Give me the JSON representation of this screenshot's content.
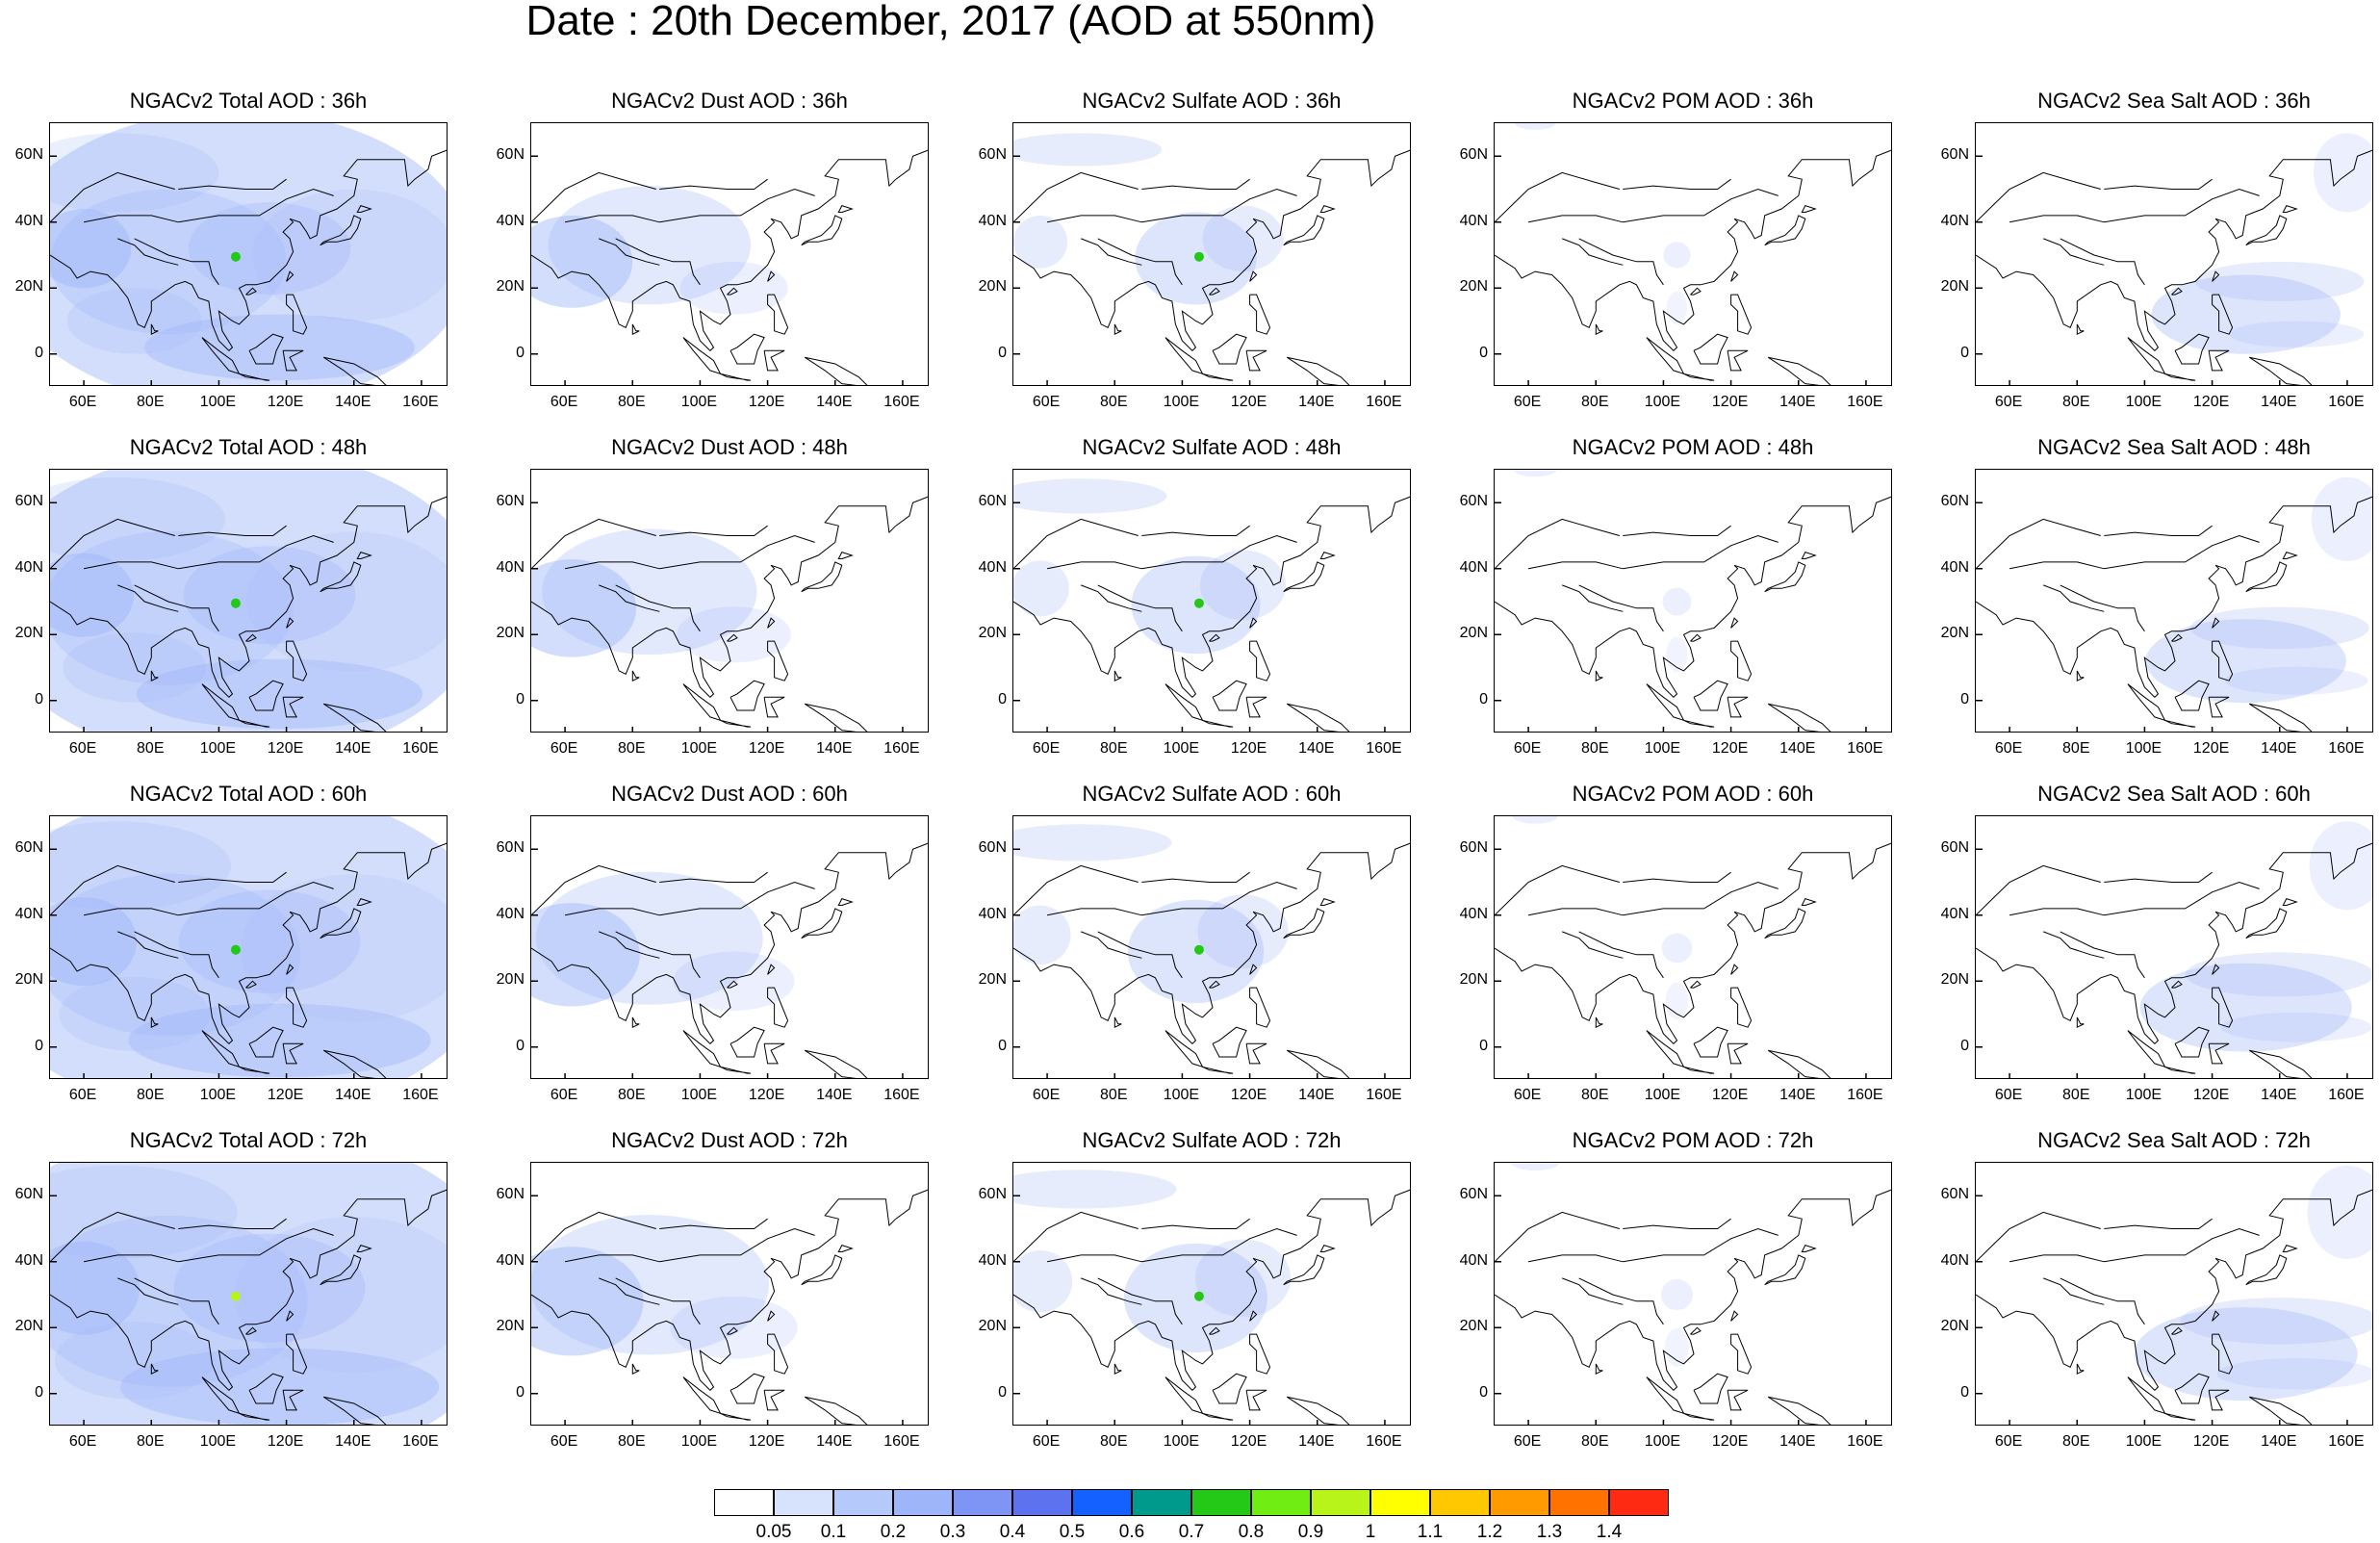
{
  "title": "Date : 20th December, 2017 (AOD at 550nm)",
  "x_ticks": [
    "60E",
    "80E",
    "100E",
    "120E",
    "140E",
    "160E"
  ],
  "x_tick_values": [
    60,
    80,
    100,
    120,
    140,
    160
  ],
  "y_ticks": [
    "60N",
    "40N",
    "20N",
    "0"
  ],
  "y_tick_values": [
    60,
    40,
    20,
    0
  ],
  "lon_range": [
    50,
    168
  ],
  "lat_range": [
    -10,
    70
  ],
  "rows": [
    {
      "lead": "36h",
      "titles": [
        "NGACv2 Total AOD : 36h",
        "NGACv2 Dust AOD : 36h",
        "NGACv2 Sulfate AOD : 36h",
        "NGACv2 POM AOD : 36h",
        "NGACv2 Sea Salt AOD : 36h"
      ]
    },
    {
      "lead": "48h",
      "titles": [
        "NGACv2 Total AOD : 48h",
        "NGACv2 Dust AOD : 48h",
        "NGACv2 Sulfate AOD : 48h",
        "NGACv2 POM AOD : 48h",
        "NGACv2 Sea Salt AOD : 48h"
      ]
    },
    {
      "lead": "60h",
      "titles": [
        "NGACv2 Total AOD : 60h",
        "NGACv2 Dust AOD : 60h",
        "NGACv2 Sulfate AOD : 60h",
        "NGACv2 POM AOD : 60h",
        "NGACv2 Sea Salt AOD : 60h"
      ]
    },
    {
      "lead": "72h",
      "titles": [
        "NGACv2 Total AOD : 72h",
        "NGACv2 Dust AOD : 72h",
        "NGACv2 Sulfate AOD : 72h",
        "NGACv2 POM AOD : 72h",
        "NGACv2 Sea Salt  AOD : 72h"
      ]
    }
  ],
  "colorbar": {
    "labels": [
      "0.05",
      "0.1",
      "0.2",
      "0.3",
      "0.4",
      "0.5",
      "0.6",
      "0.7",
      "0.8",
      "0.9",
      "1",
      "1.1",
      "1.2",
      "1.3",
      "1.4"
    ],
    "colors": [
      "#ffffff",
      "#d7e3fd",
      "#b6c9fb",
      "#9eb5f9",
      "#7f95f5",
      "#5c72ee",
      "#1461ff",
      "#009a8c",
      "#24c816",
      "#70ed12",
      "#b8f31a",
      "#ffff00",
      "#ffc800",
      "#ff9b00",
      "#ff7200",
      "#ff2a12"
    ]
  }
}
